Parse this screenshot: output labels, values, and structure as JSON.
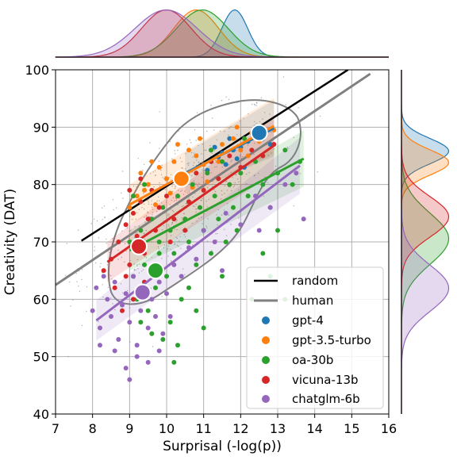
{
  "chart_data": {
    "type": "scatter",
    "xlabel": "Surprisal (-log(p))",
    "ylabel": "Creativity (DAT)",
    "xlim": [
      7,
      16
    ],
    "ylim": [
      40,
      100
    ],
    "xticks": [
      7,
      8,
      9,
      10,
      11,
      12,
      13,
      14,
      15,
      16
    ],
    "yticks": [
      40,
      50,
      60,
      70,
      80,
      90,
      100
    ],
    "grid": true,
    "legend_position": "lower-right",
    "marginals": "kde-top-and-right",
    "lines": [
      {
        "name": "random",
        "color": "#000000",
        "x": [
          7.7,
          14.9
        ],
        "y": [
          70.2,
          100.0
        ]
      },
      {
        "name": "human",
        "color": "#808080",
        "x": [
          7.0,
          15.5
        ],
        "y": [
          62.5,
          99.3
        ]
      }
    ],
    "series": [
      {
        "name": "gpt-4",
        "color": "#1f77b4",
        "mean": [
          12.5,
          89.0
        ],
        "fit": [
          [
            10.5,
            82.0
          ],
          [
            12.9,
            89.8
          ]
        ],
        "points": [
          [
            11.2,
            84
          ],
          [
            11.5,
            85.5
          ],
          [
            11.8,
            86
          ],
          [
            12.0,
            86.5
          ],
          [
            11.6,
            83.5
          ],
          [
            12.2,
            87.5
          ],
          [
            11.3,
            86.5
          ],
          [
            12.6,
            88
          ],
          [
            11.9,
            84.5
          ],
          [
            12.4,
            90
          ],
          [
            11.1,
            82.5
          ],
          [
            12.8,
            87
          ],
          [
            11.7,
            88
          ],
          [
            12.1,
            83
          ],
          [
            11.4,
            84.8
          ]
        ]
      },
      {
        "name": "gpt-3.5-turbo",
        "color": "#ff7f0e",
        "mean": [
          10.4,
          81.0
        ],
        "fit": [
          [
            9.0,
            76.5
          ],
          [
            12.9,
            90.2
          ]
        ],
        "points": [
          [
            9.2,
            78
          ],
          [
            9.5,
            80
          ],
          [
            9.8,
            83
          ],
          [
            10.0,
            81
          ],
          [
            10.2,
            84
          ],
          [
            10.5,
            82
          ],
          [
            10.8,
            85
          ],
          [
            11.0,
            83.5
          ],
          [
            11.2,
            86
          ],
          [
            11.5,
            87
          ],
          [
            11.8,
            88
          ],
          [
            12.0,
            86
          ],
          [
            12.3,
            89
          ],
          [
            12.6,
            90
          ],
          [
            12.9,
            89.5
          ],
          [
            9.0,
            76
          ],
          [
            9.3,
            82
          ],
          [
            10.1,
            78.5
          ],
          [
            10.7,
            79.5
          ],
          [
            11.4,
            84
          ],
          [
            10.3,
            87
          ],
          [
            9.7,
            76.5
          ],
          [
            11.9,
            90
          ],
          [
            12.5,
            87.5
          ],
          [
            10.9,
            88
          ],
          [
            9.6,
            84
          ],
          [
            11.1,
            80.5
          ],
          [
            12.2,
            85
          ],
          [
            10.6,
            86
          ],
          [
            9.4,
            79
          ]
        ]
      },
      {
        "name": "oa-30b",
        "color": "#2ca02c",
        "mean": [
          9.7,
          65.0
        ],
        "fit": [
          [
            9.0,
            68.5
          ],
          [
            13.7,
            84.5
          ]
        ],
        "points": [
          [
            9.0,
            70
          ],
          [
            9.1,
            64
          ],
          [
            9.2,
            60
          ],
          [
            9.3,
            72
          ],
          [
            9.4,
            66
          ],
          [
            9.5,
            58
          ],
          [
            9.6,
            74
          ],
          [
            9.7,
            62
          ],
          [
            9.8,
            70
          ],
          [
            9.9,
            76
          ],
          [
            10.0,
            64
          ],
          [
            10.1,
            72
          ],
          [
            10.2,
            68
          ],
          [
            10.3,
            78
          ],
          [
            10.4,
            60
          ],
          [
            10.5,
            74
          ],
          [
            10.6,
            70
          ],
          [
            10.7,
            80
          ],
          [
            10.8,
            66
          ],
          [
            10.9,
            76
          ],
          [
            11.0,
            72
          ],
          [
            11.1,
            82
          ],
          [
            11.2,
            68
          ],
          [
            11.3,
            78
          ],
          [
            11.4,
            74
          ],
          [
            11.5,
            84
          ],
          [
            11.6,
            70
          ],
          [
            11.7,
            80
          ],
          [
            11.8,
            76
          ],
          [
            11.9,
            72
          ],
          [
            12.0,
            82
          ],
          [
            12.2,
            78
          ],
          [
            12.4,
            84
          ],
          [
            12.6,
            80
          ],
          [
            12.8,
            76
          ],
          [
            13.0,
            82
          ],
          [
            13.2,
            86
          ],
          [
            13.4,
            80
          ],
          [
            13.6,
            84
          ],
          [
            9.3,
            56
          ],
          [
            9.6,
            54
          ],
          [
            9.9,
            53
          ],
          [
            10.1,
            56
          ],
          [
            10.3,
            52
          ],
          [
            10.8,
            58
          ],
          [
            11.0,
            55
          ],
          [
            10.2,
            49
          ],
          [
            9.1,
            78
          ],
          [
            9.4,
            80
          ],
          [
            12.3,
            60
          ],
          [
            12.8,
            64
          ],
          [
            13.2,
            60
          ],
          [
            11.5,
            64
          ],
          [
            10.6,
            62
          ],
          [
            9.8,
            68
          ],
          [
            10.4,
            82
          ],
          [
            11.2,
            86
          ],
          [
            12.1,
            88
          ],
          [
            13.0,
            72
          ],
          [
            12.6,
            68
          ]
        ]
      },
      {
        "name": "vicuna-13b",
        "color": "#d62728",
        "mean": [
          9.25,
          69.2
        ],
        "fit": [
          [
            8.4,
            66.5
          ],
          [
            12.9,
            86.8
          ]
        ],
        "points": [
          [
            8.5,
            67
          ],
          [
            8.7,
            70
          ],
          [
            8.9,
            73
          ],
          [
            9.0,
            66
          ],
          [
            9.1,
            75
          ],
          [
            9.2,
            71
          ],
          [
            9.3,
            77
          ],
          [
            9.4,
            68
          ],
          [
            9.5,
            74
          ],
          [
            9.6,
            79
          ],
          [
            9.7,
            72
          ],
          [
            9.8,
            76
          ],
          [
            10.0,
            78
          ],
          [
            10.2,
            74
          ],
          [
            10.4,
            80
          ],
          [
            10.6,
            77
          ],
          [
            10.8,
            82
          ],
          [
            11.0,
            79
          ],
          [
            11.2,
            84
          ],
          [
            11.4,
            81
          ],
          [
            11.7,
            85
          ],
          [
            12.0,
            83
          ],
          [
            12.3,
            86
          ],
          [
            12.6,
            85
          ],
          [
            12.9,
            87
          ],
          [
            8.6,
            62
          ],
          [
            8.9,
            64
          ],
          [
            9.1,
            60
          ],
          [
            9.4,
            63
          ],
          [
            8.3,
            65
          ],
          [
            9.0,
            79
          ],
          [
            9.3,
            81
          ],
          [
            10.1,
            70
          ],
          [
            10.5,
            72
          ],
          [
            8.8,
            58
          ]
        ]
      },
      {
        "name": "chatglm-6b",
        "color": "#9467bd",
        "mean": [
          9.35,
          61.2
        ],
        "fit": [
          [
            8.1,
            56.3
          ],
          [
            13.6,
            83.3
          ]
        ],
        "points": [
          [
            8.0,
            58
          ],
          [
            8.1,
            62
          ],
          [
            8.2,
            55
          ],
          [
            8.4,
            60
          ],
          [
            8.5,
            57
          ],
          [
            8.6,
            63
          ],
          [
            8.7,
            53
          ],
          [
            8.8,
            59
          ],
          [
            8.9,
            61
          ],
          [
            9.0,
            56
          ],
          [
            9.1,
            64
          ],
          [
            9.2,
            52
          ],
          [
            9.3,
            58
          ],
          [
            9.4,
            62
          ],
          [
            9.5,
            55
          ],
          [
            9.6,
            60
          ],
          [
            9.7,
            57
          ],
          [
            9.8,
            63
          ],
          [
            9.9,
            54
          ],
          [
            10.0,
            61
          ],
          [
            10.2,
            66
          ],
          [
            10.4,
            64
          ],
          [
            10.6,
            69
          ],
          [
            10.8,
            67
          ],
          [
            11.0,
            72
          ],
          [
            11.3,
            70
          ],
          [
            11.6,
            75
          ],
          [
            12.0,
            73
          ],
          [
            12.4,
            78
          ],
          [
            12.8,
            76
          ],
          [
            13.2,
            80
          ],
          [
            13.5,
            82
          ],
          [
            12.5,
            72
          ],
          [
            11.5,
            65
          ],
          [
            8.3,
            64
          ],
          [
            8.6,
            51
          ],
          [
            8.9,
            48
          ],
          [
            9.2,
            50
          ],
          [
            9.0,
            46
          ],
          [
            9.5,
            49
          ],
          [
            9.8,
            51
          ],
          [
            10.1,
            57
          ],
          [
            13.7,
            74
          ],
          [
            8.2,
            52
          ],
          [
            9.7,
            66
          ]
        ]
      }
    ]
  },
  "legend": {
    "random": "random",
    "human": "human",
    "gpt4": "gpt-4",
    "gpt35": "gpt-3.5-turbo",
    "oa30b": "oa-30b",
    "vicuna": "vicuna-13b",
    "chatglm": "chatglm-6b"
  }
}
